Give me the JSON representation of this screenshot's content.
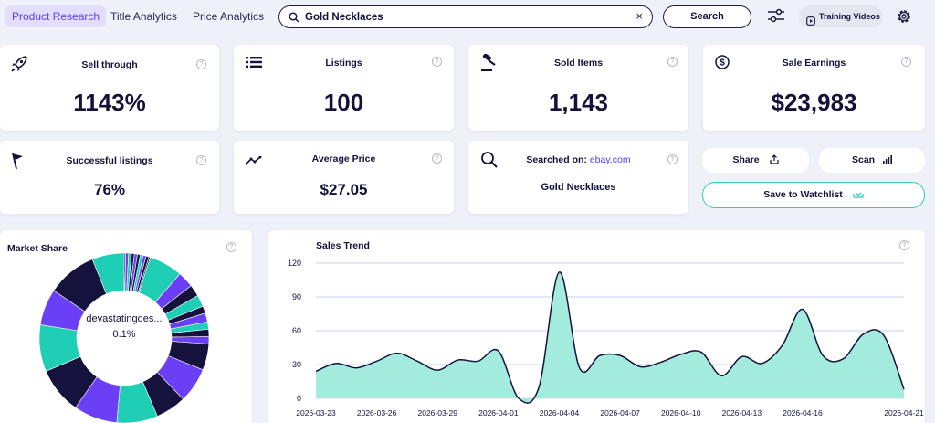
{
  "nav": {
    "tabs": [
      {
        "label": "Product Research",
        "active": true
      },
      {
        "label": "Title Analytics",
        "active": false
      },
      {
        "label": "Price Analytics",
        "active": false
      }
    ],
    "search_value": "Gold Necklaces",
    "clear_glyph": "×",
    "search_button": "Search",
    "training_videos": "Training Videos"
  },
  "metrics": {
    "sell_through": {
      "title": "Sell through",
      "value": "1143%"
    },
    "listings": {
      "title": "Listings",
      "value": "100"
    },
    "sold_items": {
      "title": "Sold Items",
      "value": "1,143"
    },
    "sale_earnings": {
      "title": "Sale Earnings",
      "value": "$23,983"
    },
    "successful_listings": {
      "title": "Successful listings",
      "value": "76%"
    },
    "average_price": {
      "title": "Average Price",
      "value": "$27.05"
    },
    "searched_on": {
      "label": "Searched on:",
      "site": "ebay.com",
      "query": "Gold Necklaces"
    }
  },
  "help_glyph": "?",
  "actions": {
    "share": "Share",
    "scan": "Scan",
    "save_to_watchlist": "Save to Watchlist"
  },
  "market_share": {
    "title": "Market Share",
    "center_label": "devastatingdes...",
    "center_value": "0.1%"
  },
  "colors": {
    "teal": "#1fcfb5",
    "navy": "#16123e",
    "purple": "#6a3ff5",
    "accent": "#5a3ff0",
    "area": "#a3ecdd"
  },
  "chart_data": {
    "type": "area",
    "title": "Sales Trend",
    "xlabel": "",
    "ylabel": "",
    "ylim": [
      0,
      120
    ],
    "yticks": [
      0,
      30,
      60,
      90,
      120
    ],
    "grid": true,
    "x_tick_labels": [
      "2026-03-23",
      "2026-03-26",
      "2026-03-29",
      "2026-04-01",
      "2026-04-04",
      "2026-04-07",
      "2026-04-10",
      "2026-04-13",
      "2026-04-16",
      "2026-04-21"
    ],
    "series": [
      {
        "x": [
          "2026-03-23",
          "2026-03-24",
          "2026-03-25",
          "2026-03-26",
          "2026-03-27",
          "2026-03-28",
          "2026-03-29",
          "2026-03-30",
          "2026-03-31",
          "2026-04-01",
          "2026-04-02",
          "2026-04-03",
          "2026-04-04",
          "2026-04-05",
          "2026-04-06",
          "2026-04-07",
          "2026-04-08",
          "2026-04-09",
          "2026-04-10",
          "2026-04-11",
          "2026-04-12",
          "2026-04-13",
          "2026-04-14",
          "2026-04-15",
          "2026-04-16",
          "2026-04-17",
          "2026-04-18",
          "2026-04-19",
          "2026-04-20",
          "2026-04-21"
        ],
        "y": [
          24,
          31,
          27,
          33,
          40,
          33,
          25,
          34,
          33,
          42,
          0,
          10,
          112,
          27,
          38,
          38,
          28,
          32,
          39,
          41,
          20,
          37,
          31,
          47,
          79,
          38,
          35,
          57,
          56,
          8
        ]
      }
    ]
  }
}
